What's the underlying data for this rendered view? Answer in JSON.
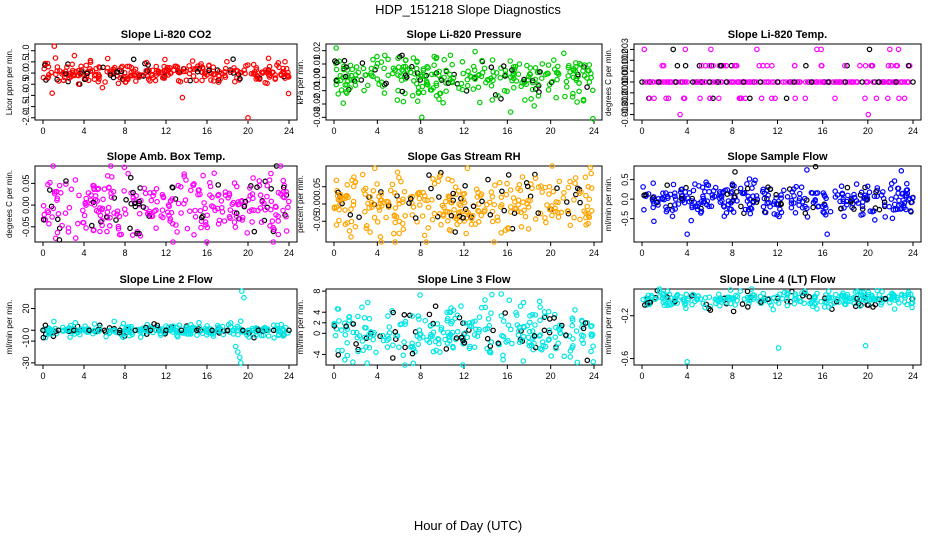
{
  "title": "HDP_151218  Slope Diagnostics",
  "xlabel": "Hour of Day (UTC)",
  "colors": {
    "red": "#ff0000",
    "green": "#00cc00",
    "magenta": "#ff00ff",
    "orange": "#ffa500",
    "blue": "#0000ff",
    "cyan": "#00e5e5",
    "black": "#000000"
  },
  "chart_data": [
    {
      "type": "scatter",
      "title": "Slope Li-820 CO2",
      "ylabel": "Licor ppm per min.",
      "xlim": [
        0,
        24
      ],
      "xticks": [
        0,
        4,
        8,
        12,
        16,
        20,
        24
      ],
      "ylim": [
        -2.1,
        1.3
      ],
      "yticks": [
        "1.0",
        "0.5",
        "0.0",
        "-0.5",
        "-1.0",
        "-1.5",
        "-2.0"
      ],
      "color": "red",
      "center": 0.0,
      "spread": 0.25,
      "n": 300,
      "outliers": [
        [
          1.1,
          1.2
        ],
        [
          0.9,
          -0.9
        ],
        [
          13.6,
          -1.1
        ],
        [
          20.0,
          -2.0
        ]
      ]
    },
    {
      "type": "scatter",
      "title": "Slope Li-820 Pressure",
      "ylabel": "kPa per min.",
      "xlim": [
        0,
        24
      ],
      "xticks": [
        0,
        4,
        8,
        12,
        16,
        20,
        24
      ],
      "ylim": [
        -0.032,
        0.025
      ],
      "yticks": [
        "0.02",
        "0.01",
        "0.00",
        "-0.01",
        "-0.02",
        "-0.03"
      ],
      "color": "green",
      "center": 0.0,
      "spread": 0.008,
      "n": 320,
      "outliers": [
        [
          8.1,
          -0.03
        ],
        [
          16.3,
          -0.026
        ],
        [
          23.9,
          -0.031
        ],
        [
          0.2,
          0.022
        ]
      ]
    },
    {
      "type": "scatter",
      "title": "Slope Li-820 Temp.",
      "ylabel": "degrees C per min.",
      "xlim": [
        0,
        24
      ],
      "xticks": [
        0,
        4,
        8,
        12,
        16,
        20,
        24
      ],
      "ylim": [
        -0.0035,
        0.0035
      ],
      "yticks": [
        "0.003",
        "0.002",
        "0.001",
        "0.000",
        "-0.001",
        "-0.002",
        "-0.003"
      ],
      "color": "magenta",
      "discrete": [
        0.0,
        0.0015,
        -0.0015,
        0.003,
        -0.003
      ],
      "n": 220,
      "outliers": []
    },
    {
      "type": "scatter",
      "title": "Slope Amb. Box Temp.",
      "ylabel": "degrees C per min.",
      "xlim": [
        0,
        24
      ],
      "xticks": [
        0,
        4,
        8,
        12,
        16,
        20,
        24
      ],
      "ylim": [
        -0.085,
        0.09
      ],
      "yticks": [
        "0.05",
        "0.00",
        "-0.05"
      ],
      "color": "magenta",
      "center": 0.0,
      "spread": 0.04,
      "n": 320,
      "outliers": []
    },
    {
      "type": "scatter",
      "title": "Slope Gas Stream RH",
      "ylabel": "percent per min.",
      "xlim": [
        0,
        24
      ],
      "xticks": [
        0,
        4,
        8,
        12,
        16,
        20,
        24
      ],
      "ylim": [
        -0.11,
        0.11
      ],
      "yticks": [
        "0.05",
        "0.00",
        "-0.05"
      ],
      "color": "orange",
      "center": 0.0,
      "spread": 0.045,
      "n": 340,
      "outliers": []
    },
    {
      "type": "scatter",
      "title": "Slope Sample Flow",
      "ylabel": "ml/min per min.",
      "xlim": [
        0,
        24
      ],
      "xticks": [
        0,
        4,
        8,
        12,
        16,
        20,
        24
      ],
      "ylim": [
        -1.1,
        0.85
      ],
      "yticks": [
        "0.5",
        "0.0",
        "-0.5"
      ],
      "color": "blue",
      "center": 0.0,
      "spread": 0.22,
      "n": 340,
      "outliers": [
        [
          4.0,
          -0.9
        ],
        [
          16.4,
          -0.9
        ],
        [
          14.6,
          0.75
        ]
      ]
    },
    {
      "type": "scatter",
      "title": "Slope Line 2 Flow",
      "ylabel": "ml/min per min.",
      "xlim": [
        0,
        24
      ],
      "xticks": [
        0,
        4,
        8,
        12,
        16,
        20,
        24
      ],
      "ylim": [
        -32,
        38
      ],
      "yticks": [
        "20",
        "0",
        "-10",
        "-30"
      ],
      "color": "cyan",
      "center": 0.0,
      "spread": 3.0,
      "n": 260,
      "outliers": [
        [
          19.4,
          36
        ],
        [
          19.6,
          30
        ],
        [
          19.2,
          -25
        ],
        [
          19.0,
          -20
        ],
        [
          19.3,
          -30
        ],
        [
          18.8,
          -15
        ]
      ]
    },
    {
      "type": "scatter",
      "title": "Slope Line 3 Flow",
      "ylabel": "ml/min per min.",
      "xlim": [
        0,
        24
      ],
      "xticks": [
        0,
        4,
        8,
        12,
        16,
        20,
        24
      ],
      "ylim": [
        -6,
        8.4
      ],
      "yticks": [
        "8",
        "4",
        "2",
        "0",
        "-4"
      ],
      "color": "cyan",
      "center": 0.0,
      "spread": 2.6,
      "n": 320,
      "outliers": []
    },
    {
      "type": "scatter",
      "title": "Slope Line 4 (LT) Flow",
      "ylabel": "ml/min per min.",
      "xlim": [
        0,
        24
      ],
      "xticks": [
        0,
        4,
        8,
        12,
        16,
        20,
        24
      ],
      "ylim": [
        -0.66,
        0.05
      ],
      "yticks": [
        "-0.2",
        "-0.6"
      ],
      "color": "cyan",
      "center": -0.05,
      "spread": 0.04,
      "n": 300,
      "outliers": [
        [
          4.0,
          -0.63
        ],
        [
          12.1,
          -0.5
        ],
        [
          19.8,
          -0.48
        ],
        [
          19.6,
          0.02
        ]
      ]
    }
  ]
}
